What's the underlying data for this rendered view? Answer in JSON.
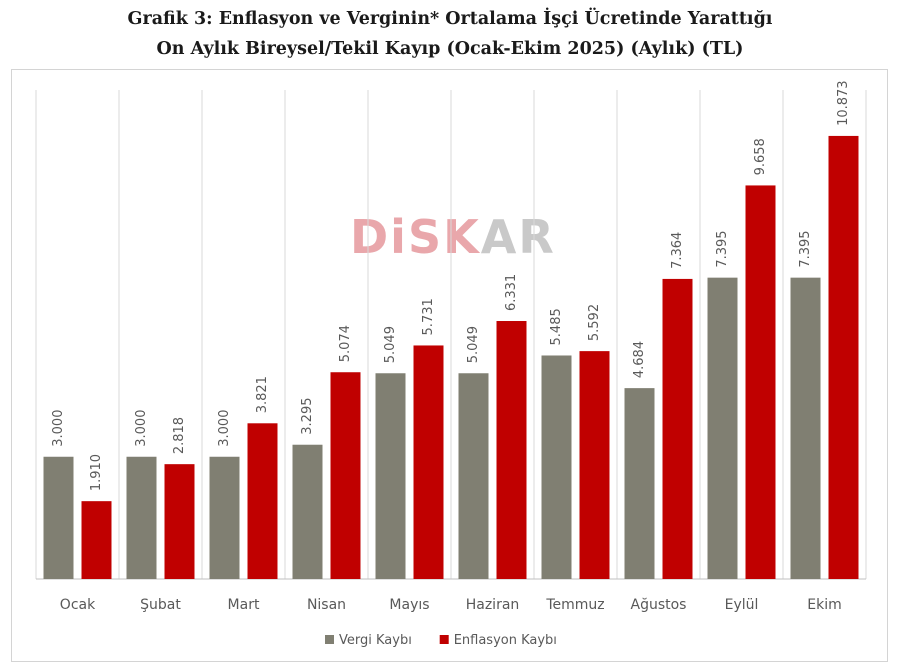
{
  "title_lines": [
    "Grafik 3: Enflasyon ve Verginin* Ortalama İşçi Ücretinde Yarattığı",
    "On Aylık Bireysel/Tekil Kayıp (Ocak-Ekim 2025) (Aylık) (TL)"
  ],
  "watermark": {
    "part1": "DiSK",
    "part2": "AR"
  },
  "colors": {
    "vergi": "#807f72",
    "enflasyon": "#c00000",
    "grid": "#d9d9d9",
    "text": "#595959"
  },
  "chart_data": {
    "type": "bar",
    "categories": [
      "Ocak",
      "Şubat",
      "Mart",
      "Nisan",
      "Mayıs",
      "Haziran",
      "Temmuz",
      "Ağustos",
      "Eylül",
      "Ekim"
    ],
    "series": [
      {
        "name": "Vergi Kaybı",
        "values": [
          3000,
          3000,
          3000,
          3295,
          5049,
          5049,
          5485,
          4684,
          7395,
          7395
        ],
        "labels": [
          "3.000",
          "3.000",
          "3.000",
          "3.295",
          "5.049",
          "5.049",
          "5.485",
          "4.684",
          "7.395",
          "7.395"
        ]
      },
      {
        "name": "Enflasyon Kaybı",
        "values": [
          1910,
          2818,
          3821,
          5074,
          5731,
          6331,
          5592,
          7364,
          9658,
          10873
        ],
        "labels": [
          "1.910",
          "2.818",
          "3.821",
          "5.074",
          "5.731",
          "6.331",
          "5.592",
          "7.364",
          "9.658",
          "10.873"
        ]
      }
    ],
    "ylim": [
      0,
      12000
    ],
    "grid": "vertical",
    "legend": "bottom"
  }
}
